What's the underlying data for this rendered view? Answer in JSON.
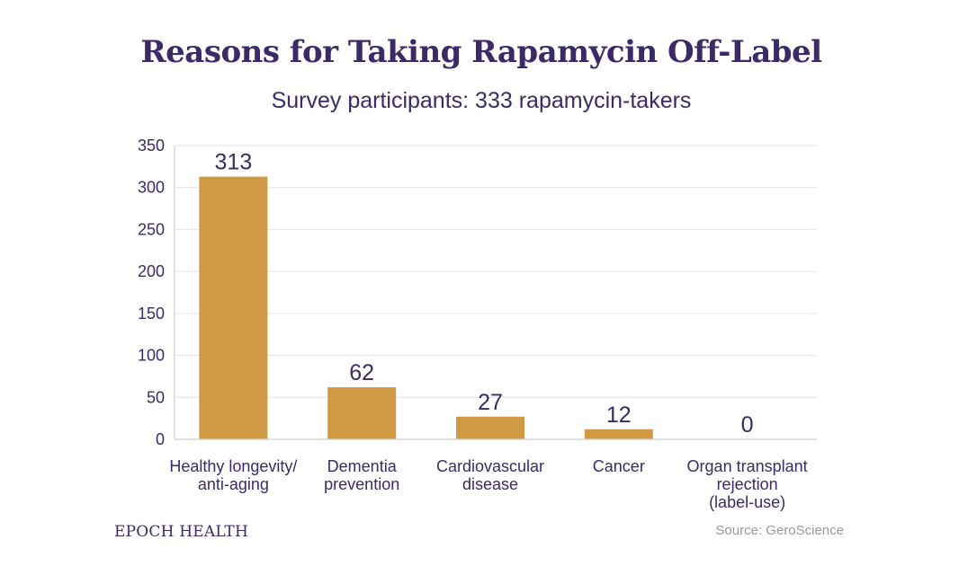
{
  "chart_data": {
    "type": "bar",
    "title": "Reasons for Taking Rapamycin Off-Label",
    "subtitle": "Survey participants: 333 rapamycin-takers",
    "categories": [
      [
        "Healthy longevity/",
        "anti-aging"
      ],
      [
        "Dementia",
        "prevention"
      ],
      [
        "Cardiovascular",
        "disease"
      ],
      [
        "Cancer"
      ],
      [
        "Organ transplant",
        "rejection",
        "(label-use)"
      ]
    ],
    "values": [
      313,
      62,
      27,
      12,
      0
    ],
    "data_labels": [
      "313",
      "62",
      "27",
      "12",
      "0"
    ],
    "ylim": [
      0,
      350
    ],
    "yticks": [
      0,
      50,
      100,
      150,
      200,
      250,
      300,
      350
    ],
    "xlabel": "",
    "ylabel": "",
    "grid": true,
    "bar_color": "#d09a45",
    "text_color": "#3b2a66",
    "grid_color": "#e6e6e6"
  },
  "footer": {
    "brand": "EPOCH HEALTH",
    "source": "Source: GeroScience"
  }
}
